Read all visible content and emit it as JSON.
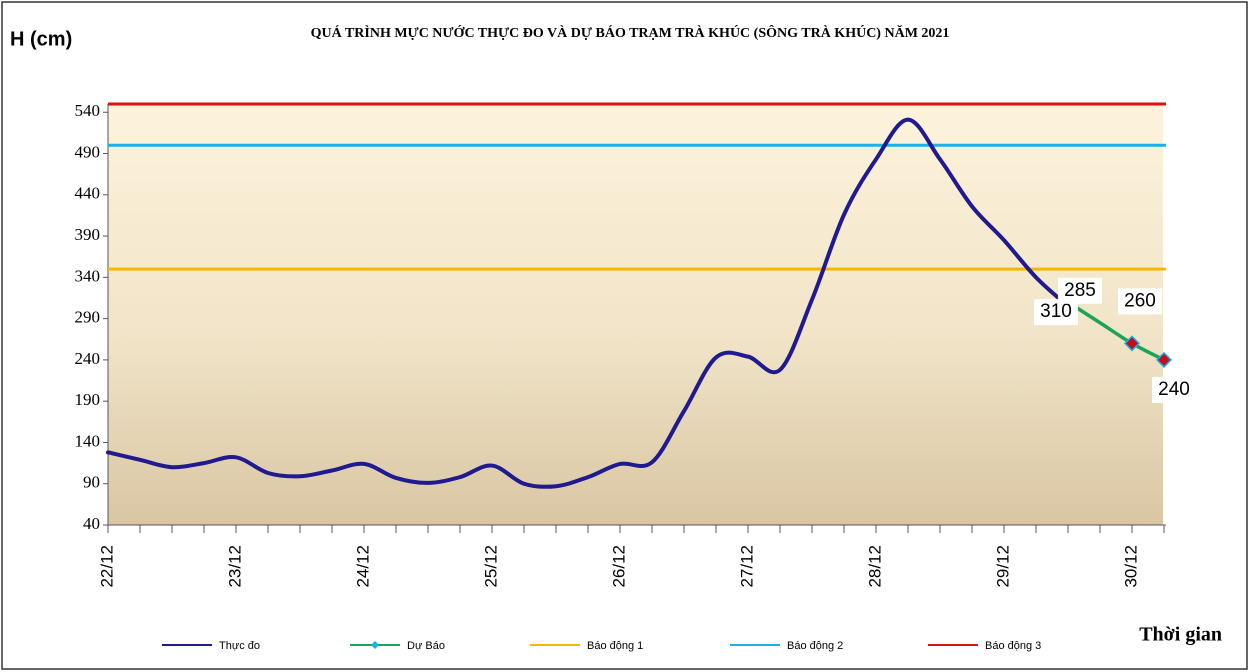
{
  "chart_data": {
    "type": "line",
    "title": "QUÁ TRÌNH MỰC NƯỚC THỰC ĐO VÀ DỰ BÁO TRẠM TRÀ KHÚC (SÔNG TRÀ KHÚC) NĂM 2021",
    "y_label": "H (cm)",
    "x_label": "Thời gian",
    "categories": [
      "22/12",
      null,
      null,
      null,
      "23/12",
      null,
      null,
      null,
      "24/12",
      null,
      null,
      null,
      "25/12",
      null,
      null,
      null,
      "26/12",
      null,
      null,
      null,
      "27/12",
      null,
      null,
      null,
      "28/12",
      null,
      null,
      null,
      "29/12",
      null,
      null,
      null,
      "30/12",
      null
    ],
    "series": [
      {
        "name": "Thực đo",
        "color": "#1f1a8f",
        "values": [
          128,
          119,
          110,
          115,
          122,
          103,
          99,
          106,
          114,
          97,
          91,
          98,
          112,
          90,
          87,
          98,
          114,
          116,
          178,
          243,
          244,
          228,
          313,
          416,
          483,
          531,
          483,
          426,
          385,
          340,
          305,
          null,
          null,
          null
        ]
      },
      {
        "name": "Dự Báo",
        "color": "#1aa35a",
        "values": [
          null,
          null,
          null,
          null,
          null,
          null,
          null,
          null,
          null,
          null,
          null,
          null,
          null,
          null,
          null,
          null,
          null,
          null,
          null,
          null,
          null,
          null,
          null,
          null,
          null,
          null,
          null,
          null,
          null,
          null,
          310,
          285,
          260,
          240
        ],
        "value_labels": [
          null,
          null,
          null,
          null,
          null,
          null,
          null,
          null,
          null,
          null,
          null,
          null,
          null,
          null,
          null,
          null,
          null,
          null,
          null,
          null,
          null,
          null,
          null,
          null,
          null,
          null,
          null,
          null,
          null,
          null,
          "310",
          "285",
          "260",
          "240"
        ]
      }
    ],
    "alert_levels": [
      {
        "name": "Báo động 1",
        "color": "#f5b800",
        "value": 350
      },
      {
        "name": "Báo động 2",
        "color": "#1ab0e8",
        "value": 500
      },
      {
        "name": "Báo động 3",
        "color": "#e01010",
        "value": 550
      }
    ],
    "ylim": [
      40,
      550
    ],
    "yticks": [
      40,
      90,
      140,
      190,
      240,
      290,
      340,
      390,
      440,
      490,
      540
    ]
  }
}
